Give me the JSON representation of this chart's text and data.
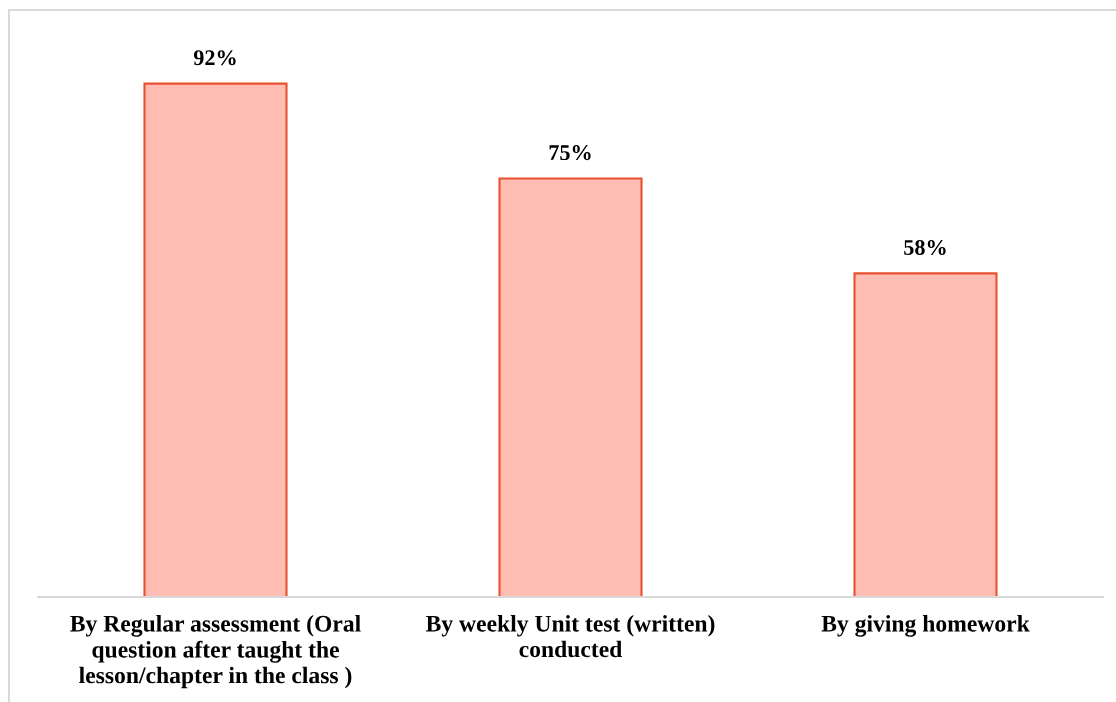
{
  "chart_data": {
    "type": "bar",
    "categories": [
      "By Regular assessment (Oral\nquestion after taught the\nlesson/chapter in the class )",
      "By weekly Unit test (written)\nconducted",
      "By giving homework"
    ],
    "values": [
      92,
      75,
      58
    ],
    "color": "#ffbcb2",
    "value_labels": [
      "92%",
      "75%",
      "58%"
    ],
    "tick_labels": "x"
  }
}
